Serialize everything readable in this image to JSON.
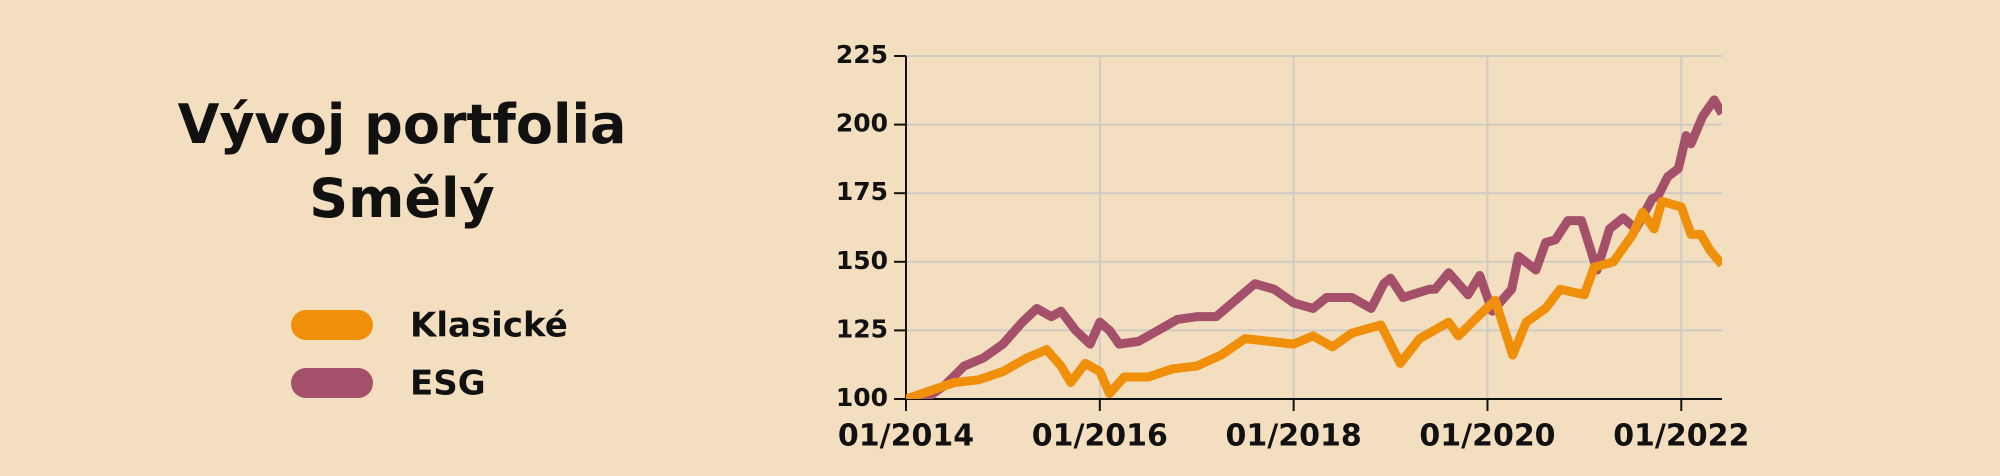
{
  "chart_data": {
    "type": "line",
    "title": "Vývoj portfolia Smělý",
    "xlim": [
      2014,
      2022.42
    ],
    "ylim": [
      100,
      225
    ],
    "xticks": [
      {
        "value": 2014,
        "label": "01/2014"
      },
      {
        "value": 2016,
        "label": "01/2016"
      },
      {
        "value": 2018,
        "label": "01/2018"
      },
      {
        "value": 2020,
        "label": "01/2020"
      },
      {
        "value": 2022,
        "label": "01/2022"
      }
    ],
    "yticks": [
      100,
      125,
      150,
      175,
      200,
      225
    ],
    "grid": true,
    "series": [
      {
        "name": "Klasické",
        "color": "#f0900a",
        "x": [
          2014.0,
          2014.25,
          2014.5,
          2014.75,
          2015.0,
          2015.25,
          2015.45,
          2015.6,
          2015.7,
          2015.85,
          2016.0,
          2016.1,
          2016.25,
          2016.5,
          2016.75,
          2017.0,
          2017.25,
          2017.5,
          2017.75,
          2018.0,
          2018.2,
          2018.4,
          2018.6,
          2018.9,
          2019.0,
          2019.1,
          2019.3,
          2019.6,
          2019.7,
          2019.9,
          2020.08,
          2020.26,
          2020.4,
          2020.6,
          2020.75,
          2021.0,
          2021.1,
          2021.3,
          2021.5,
          2021.6,
          2021.72,
          2021.8,
          2022.0,
          2022.1,
          2022.2,
          2022.3,
          2022.42
        ],
        "values": [
          100,
          103,
          106,
          107,
          110,
          115,
          118,
          112,
          106,
          113,
          110,
          102,
          108,
          108,
          111,
          112,
          116,
          122,
          121,
          120,
          123,
          119,
          124,
          127,
          120,
          113,
          122,
          128,
          123,
          130,
          136,
          116,
          128,
          133,
          140,
          138,
          148,
          150,
          160,
          168,
          162,
          172,
          170,
          160,
          160,
          154,
          149
        ]
      },
      {
        "name": "ESG",
        "color": "#a5506a",
        "x": [
          2014.0,
          2014.2,
          2014.4,
          2014.6,
          2014.8,
          2015.0,
          2015.2,
          2015.35,
          2015.5,
          2015.6,
          2015.75,
          2015.9,
          2016.0,
          2016.1,
          2016.2,
          2016.4,
          2016.6,
          2016.8,
          2017.0,
          2017.2,
          2017.4,
          2017.6,
          2017.8,
          2018.0,
          2018.2,
          2018.34,
          2018.6,
          2018.8,
          2018.93,
          2019.0,
          2019.13,
          2019.4,
          2019.46,
          2019.6,
          2019.8,
          2019.92,
          2020.05,
          2020.25,
          2020.32,
          2020.5,
          2020.6,
          2020.7,
          2020.83,
          2020.97,
          2021.13,
          2021.26,
          2021.4,
          2021.53,
          2021.7,
          2021.76,
          2021.86,
          2021.97,
          2022.05,
          2022.1,
          2022.22,
          2022.34,
          2022.42
        ],
        "values": [
          98,
          100,
          105,
          112,
          115,
          120,
          128,
          133,
          130,
          132,
          125,
          120,
          128,
          125,
          120,
          121,
          125,
          129,
          130,
          130,
          136,
          142,
          140,
          135,
          133,
          137,
          137,
          133,
          142,
          144,
          137,
          140,
          140,
          146,
          138,
          145,
          132,
          140,
          152,
          147,
          157,
          158,
          165,
          165,
          147,
          162,
          166,
          162,
          173,
          174,
          181,
          184,
          196,
          193,
          203,
          209,
          204
        ]
      }
    ]
  }
}
